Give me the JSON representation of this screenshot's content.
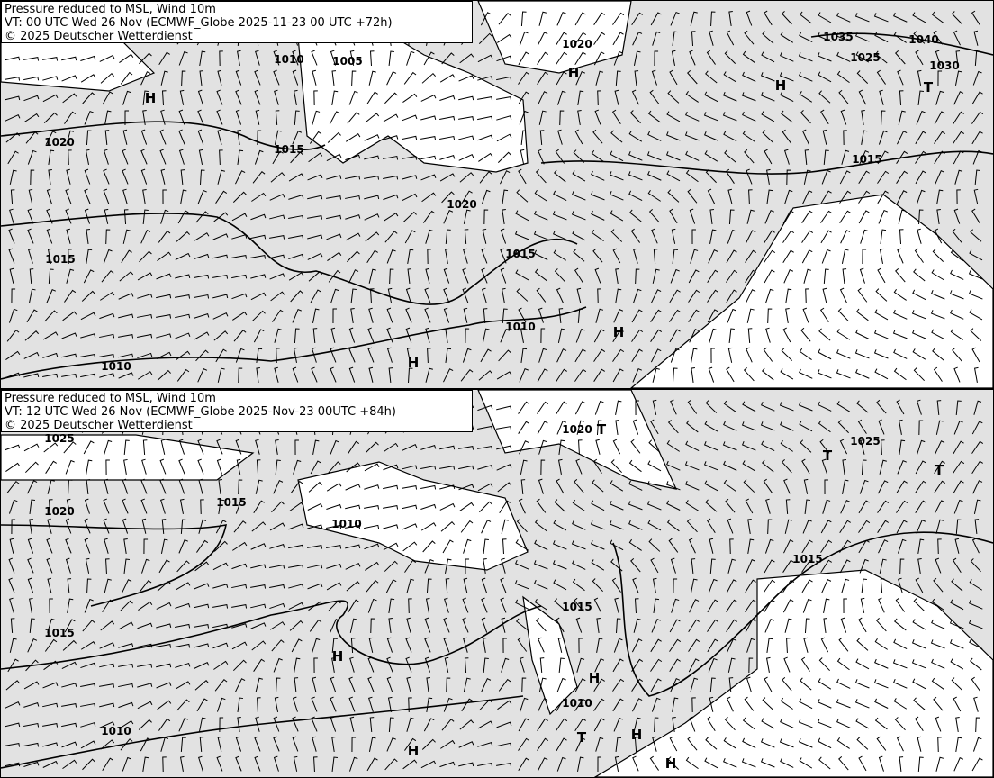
{
  "panels": [
    {
      "title": "Pressure reduced to MSL, Wind 10m",
      "valid_time": "VT: 00 UTC Wed 26 Nov (ECMWF_Globe 2025-11-23 00 UTC +72h)",
      "copyright": "© 2025 Deutscher Wetterdienst",
      "isobar_labels": [
        "1010",
        "1005",
        "1020",
        "1035",
        "1040",
        "1025",
        "1030",
        "1020",
        "1015",
        "1015",
        "1020",
        "1015",
        "1015",
        "1010",
        "1010"
      ],
      "pressure_centers": [
        "H",
        "H",
        "T",
        "H",
        "H",
        "H"
      ]
    },
    {
      "title": "Pressure reduced to MSL, Wind 10m",
      "valid_time": "VT: 12 UTC Wed 26 Nov (ECMWF_Globe 2025-Nov-23 00UTC +84h)",
      "copyright": "© 2025 Deutscher Wetterdienst",
      "isobar_labels": [
        "1025",
        "1020",
        "1025",
        "1015",
        "1020",
        "1010",
        "1015",
        "1015",
        "1015",
        "1010",
        "1010"
      ],
      "pressure_centers": [
        "T",
        "T",
        "T",
        "H",
        "H",
        "H",
        "H",
        "T",
        "H"
      ]
    }
  ],
  "colors": {
    "sea_land_shade": "#e2e2e2",
    "calm_area": "#ffffff",
    "lines": "#000000"
  }
}
